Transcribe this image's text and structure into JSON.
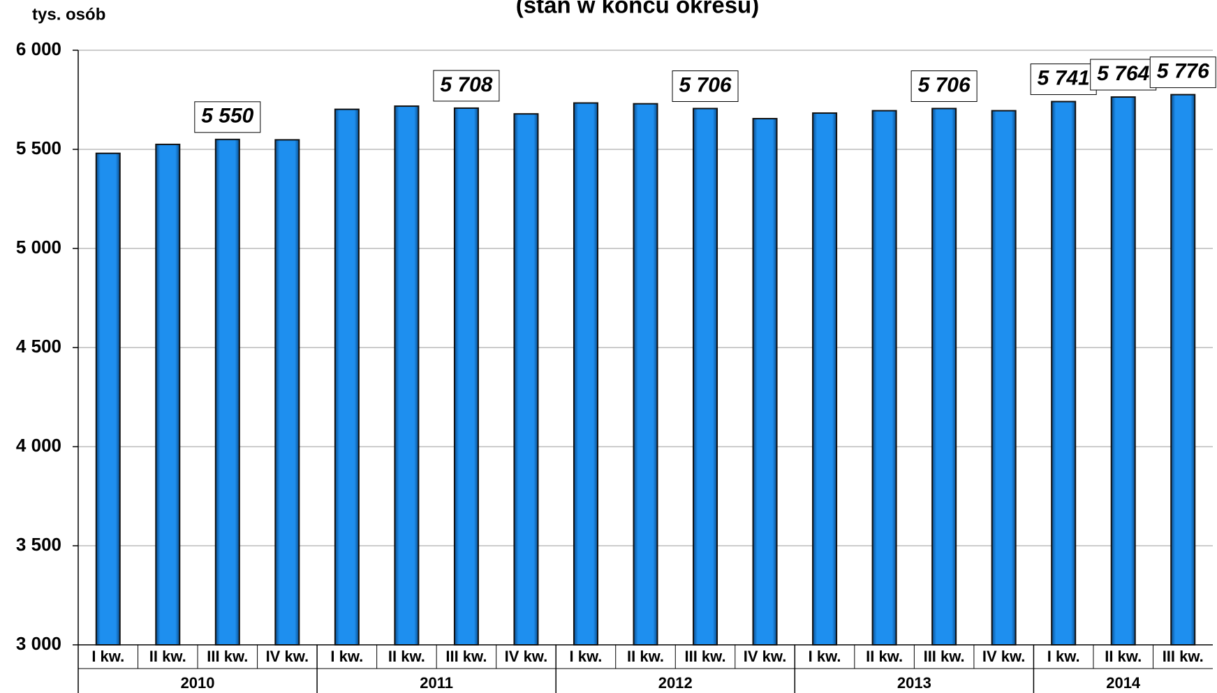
{
  "chart_data": {
    "type": "bar",
    "title": "(stan w końcu okresu)",
    "y_axis_label": "tys. osób",
    "groups": [
      {
        "name": "2010",
        "categories": [
          "I kw.",
          "II kw.",
          "III kw.",
          "IV kw."
        ]
      },
      {
        "name": "2011",
        "categories": [
          "I kw.",
          "II kw.",
          "III kw.",
          "IV kw."
        ]
      },
      {
        "name": "2012",
        "categories": [
          "I kw.",
          "II kw.",
          "III kw.",
          "IV kw."
        ]
      },
      {
        "name": "2013",
        "categories": [
          "I kw.",
          "II kw.",
          "III kw.",
          "IV kw."
        ]
      },
      {
        "name": "2014",
        "categories": [
          "I kw.",
          "II kw.",
          "III kw."
        ]
      }
    ],
    "values": [
      5480,
      5525,
      5550,
      5548,
      5702,
      5718,
      5708,
      5679,
      5734,
      5730,
      5706,
      5655,
      5683,
      5695,
      5706,
      5695,
      5741,
      5764,
      5776
    ],
    "value_labels": [
      null,
      null,
      "5 550",
      null,
      null,
      null,
      "5 708",
      null,
      null,
      null,
      "5 706",
      null,
      null,
      null,
      "5 706",
      null,
      "5 741",
      "5 764",
      "5 776"
    ],
    "color": "#1e8fef",
    "ylim": [
      3000,
      6000
    ],
    "yticks": [
      {
        "value": 3000,
        "label": "3 000"
      },
      {
        "value": 3500,
        "label": "3 500"
      },
      {
        "value": 4000,
        "label": "4 000"
      },
      {
        "value": 4500,
        "label": "4 500"
      },
      {
        "value": 5000,
        "label": "5 000"
      },
      {
        "value": 5500,
        "label": "5 500"
      },
      {
        "value": 6000,
        "label": "6 000"
      }
    ],
    "grid": true
  }
}
